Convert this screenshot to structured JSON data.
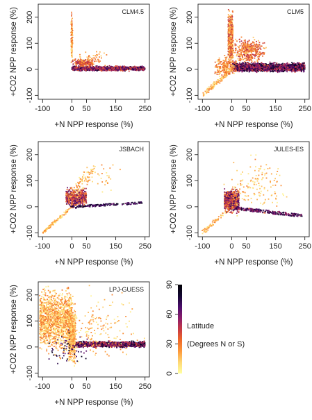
{
  "chart_data": {
    "type": "scatter",
    "x_ticks": [
      -100,
      0,
      50,
      150,
      250
    ],
    "y_ticks": [
      -100,
      0,
      100,
      200
    ],
    "xlim": [
      -115,
      265
    ],
    "ylim": [
      -115,
      250
    ],
    "xlabel": "+N NPP response (%)",
    "ylabel": "+CO2 NPP response (%)",
    "panels": [
      {
        "title": "CLM4.5",
        "clusters": [
          {
            "kind": "box",
            "xr": [
              0,
              250
            ],
            "yr": [
              -8,
              14
            ],
            "n": 1400,
            "lat": [
              35,
              80
            ]
          },
          {
            "kind": "box",
            "xr": [
              -3,
              3
            ],
            "yr": [
              0,
              240
            ],
            "n": 160,
            "lat": [
              5,
              40
            ]
          },
          {
            "kind": "box",
            "xr": [
              0,
              80
            ],
            "yr": [
              5,
              45
            ],
            "n": 220,
            "lat": [
              20,
              55
            ]
          },
          {
            "kind": "box",
            "xr": [
              20,
              130
            ],
            "yr": [
              10,
              75
            ],
            "n": 50,
            "lat": [
              10,
              35
            ]
          }
        ]
      },
      {
        "title": "CLM5",
        "clusters": [
          {
            "kind": "box",
            "xr": [
              0,
              250
            ],
            "yr": [
              -15,
              30
            ],
            "n": 2000,
            "lat": [
              40,
              85
            ]
          },
          {
            "kind": "box",
            "xr": [
              -12,
              4
            ],
            "yr": [
              0,
              248
            ],
            "n": 650,
            "lat": [
              5,
              50
            ]
          },
          {
            "kind": "line",
            "xr": [
              -95,
              0
            ],
            "yr": [
              -95,
              0
            ],
            "jit": 7,
            "n": 140,
            "lat": [
              3,
              30
            ]
          },
          {
            "kind": "box",
            "xr": [
              0,
              120
            ],
            "yr": [
              10,
              130
            ],
            "n": 400,
            "lat": [
              15,
              50
            ]
          },
          {
            "kind": "box",
            "xr": [
              -60,
              20
            ],
            "yr": [
              -40,
              60
            ],
            "n": 200,
            "lat": [
              10,
              40
            ]
          }
        ]
      },
      {
        "title": "JSBACH",
        "clusters": [
          {
            "kind": "line",
            "xr": [
              -100,
              0
            ],
            "yr": [
              -100,
              0
            ],
            "jit": 4,
            "n": 110,
            "lat": [
              3,
              30
            ]
          },
          {
            "kind": "box",
            "xr": [
              -20,
              50
            ],
            "yr": [
              -10,
              80
            ],
            "n": 600,
            "lat": [
              20,
              70
            ]
          },
          {
            "kind": "line",
            "xr": [
              0,
              240
            ],
            "yr": [
              0,
              15
            ],
            "jit": 4,
            "n": 150,
            "lat": [
              60,
              85
            ]
          },
          {
            "kind": "line",
            "xr": [
              0,
              70
            ],
            "yr": [
              40,
              150
            ],
            "jit": 15,
            "n": 90,
            "lat": [
              5,
              30
            ]
          },
          {
            "kind": "box",
            "xr": [
              40,
              180
            ],
            "yr": [
              30,
              200
            ],
            "n": 25,
            "lat": [
              5,
              30
            ]
          }
        ]
      },
      {
        "title": "JULES-ES",
        "clusters": [
          {
            "kind": "line",
            "xr": [
              -100,
              0
            ],
            "yr": [
              -100,
              0
            ],
            "jit": 6,
            "n": 90,
            "lat": [
              3,
              30
            ]
          },
          {
            "kind": "box",
            "xr": [
              -25,
              25
            ],
            "yr": [
              -30,
              80
            ],
            "n": 900,
            "lat": [
              20,
              75
            ]
          },
          {
            "kind": "line",
            "xr": [
              10,
              240
            ],
            "yr": [
              -5,
              -35
            ],
            "jit": 6,
            "n": 260,
            "lat": [
              50,
              85
            ]
          },
          {
            "kind": "box",
            "xr": [
              -30,
              200
            ],
            "yr": [
              -60,
              220
            ],
            "n": 140,
            "lat": [
              3,
              30
            ]
          }
        ]
      },
      {
        "title": "LPJ-GUESS",
        "clusters": [
          {
            "kind": "box",
            "xr": [
              -110,
              0
            ],
            "yr": [
              -40,
              250
            ],
            "n": 1400,
            "lat": [
              2,
              35
            ]
          },
          {
            "kind": "box",
            "xr": [
              -10,
              250
            ],
            "yr": [
              -5,
              25
            ],
            "n": 1400,
            "lat": [
              40,
              85
            ]
          },
          {
            "kind": "box",
            "xr": [
              -12,
              12
            ],
            "yr": [
              -100,
              200
            ],
            "n": 500,
            "lat": [
              5,
              30
            ]
          },
          {
            "kind": "box",
            "xr": [
              -100,
              250
            ],
            "yr": [
              -100,
              250
            ],
            "n": 200,
            "lat": [
              3,
              30
            ]
          },
          {
            "kind": "box",
            "xr": [
              -100,
              60
            ],
            "yr": [
              -100,
              100
            ],
            "n": 60,
            "lat": [
              60,
              85
            ]
          }
        ]
      }
    ],
    "legend": {
      "title": "Latitude",
      "subtitle": "(Degrees N or S)",
      "ticks": [
        0,
        30,
        60,
        90
      ],
      "range": [
        0,
        90
      ],
      "colors": [
        "#ffffa0",
        "#fed976",
        "#fd9a3c",
        "#f06a28",
        "#c73a45",
        "#8a1c6c",
        "#4a0c6b",
        "#120630",
        "#000004"
      ]
    }
  }
}
